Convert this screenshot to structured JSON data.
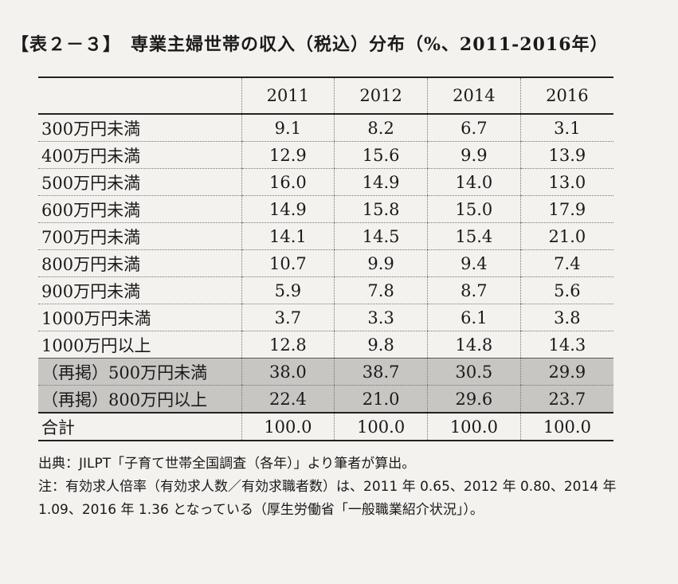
{
  "title": "【表２－３】　専業主婦世帯の収入（税込）分布（%、2011-2016年）",
  "table": {
    "headers": [
      "",
      "2011",
      "2012",
      "2014",
      "2016"
    ],
    "rows": [
      {
        "label": "300万円未満",
        "values": [
          "9.1",
          "8.2",
          "6.7",
          "3.1"
        ]
      },
      {
        "label": "400万円未満",
        "values": [
          "12.9",
          "15.6",
          "9.9",
          "13.9"
        ]
      },
      {
        "label": "500万円未満",
        "values": [
          "16.0",
          "14.9",
          "14.0",
          "13.0"
        ]
      },
      {
        "label": "600万円未満",
        "values": [
          "14.9",
          "15.8",
          "15.0",
          "17.9"
        ]
      },
      {
        "label": "700万円未満",
        "values": [
          "14.1",
          "14.5",
          "15.4",
          "21.0"
        ]
      },
      {
        "label": "800万円未満",
        "values": [
          "10.7",
          "9.9",
          "9.4",
          "7.4"
        ]
      },
      {
        "label": "900万円未満",
        "values": [
          "5.9",
          "7.8",
          "8.7",
          "5.6"
        ]
      },
      {
        "label": "1000万円未満",
        "values": [
          "3.7",
          "3.3",
          "6.1",
          "3.8"
        ]
      },
      {
        "label": "1000万円以上",
        "values": [
          "12.8",
          "9.8",
          "14.8",
          "14.3"
        ]
      },
      {
        "label": "（再掲）500万円未満",
        "values": [
          "38.0",
          "38.7",
          "30.5",
          "29.9"
        ],
        "shaded": true
      },
      {
        "label": "（再掲）800万円以上",
        "values": [
          "22.4",
          "21.0",
          "29.6",
          "23.7"
        ],
        "shaded": true
      },
      {
        "label": "合計",
        "values": [
          "100.0",
          "100.0",
          "100.0",
          "100.0"
        ],
        "total": true
      }
    ]
  },
  "notes": {
    "source": "出典：JILPT「子育て世帯全国調査（各年）」より筆者が算出。",
    "note": "注：有効求人倍率（有効求人数／有効求職者数）は、2011 年 0.65、2012 年 0.80、2014 年 1.09、2016 年 1.36 となっている（厚生労働省「一般職業紹介状況」）。"
  }
}
